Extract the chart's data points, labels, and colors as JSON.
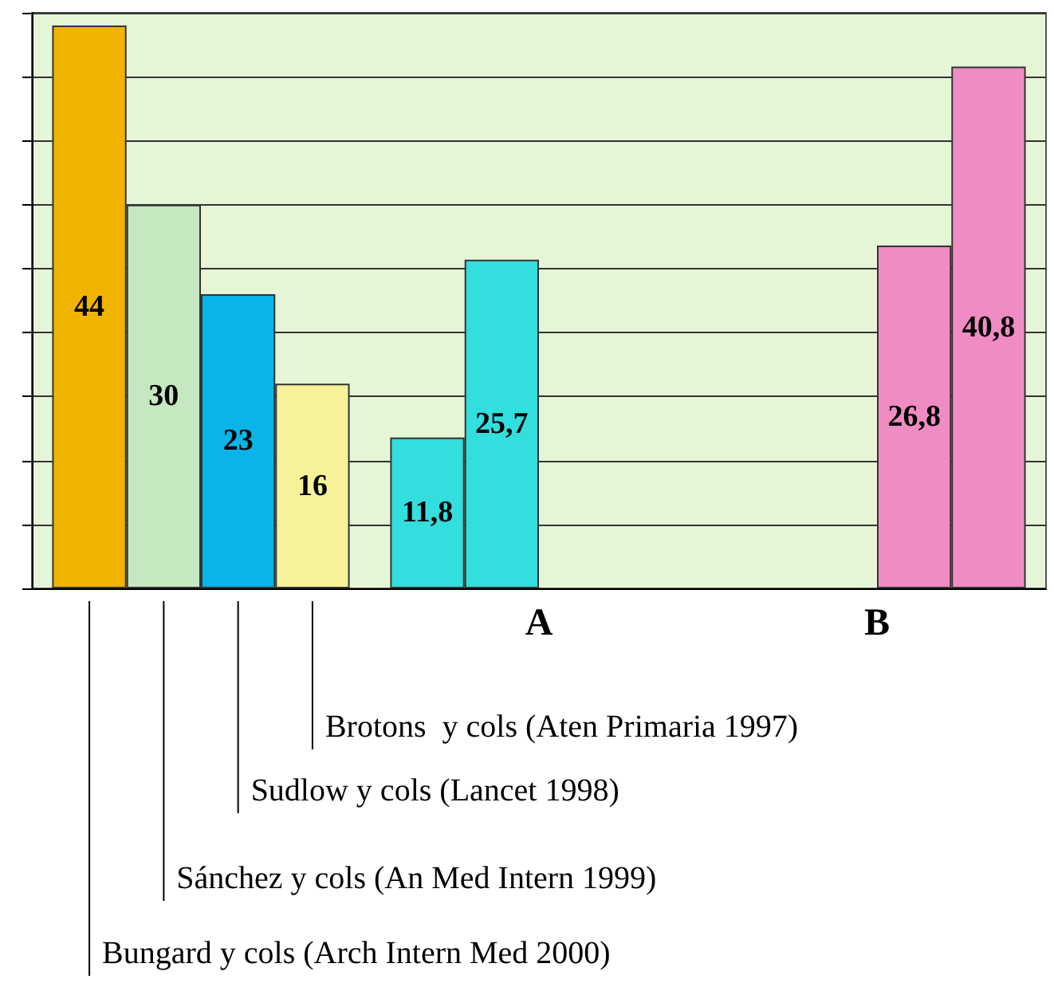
{
  "chart_data": {
    "type": "bar",
    "categories": [
      null,
      "A",
      "B"
    ],
    "series": [
      {
        "values": [
          44,
          11.8,
          null
        ],
        "colors": [
          "#f0b400",
          "#33dede",
          null
        ],
        "value_labels": [
          "44",
          "11,8",
          null
        ]
      },
      {
        "values": [
          30,
          25.7,
          null
        ],
        "colors": [
          "#c6e8c0",
          "#33dede",
          null
        ],
        "value_labels": [
          "30",
          "25,7",
          null
        ]
      },
      {
        "values": [
          23,
          null,
          26.8
        ],
        "colors": [
          "#08b4e8",
          null,
          "#f08cc4"
        ],
        "value_labels": [
          "23",
          null,
          "26,8"
        ]
      },
      {
        "values": [
          16,
          null,
          40.8
        ],
        "colors": [
          "#f6f29a",
          null,
          "#f08cc4"
        ],
        "value_labels": [
          "16",
          null,
          "40,8"
        ]
      }
    ],
    "ylim": [
      0,
      45
    ],
    "yticks": [
      {
        "value": 0,
        "label": null
      },
      {
        "value": 5,
        "label": null
      },
      {
        "value": 10,
        "label": null
      },
      {
        "value": 15,
        "label": null
      },
      {
        "value": 20,
        "label": null
      },
      {
        "value": 25,
        "label": null
      },
      {
        "value": 30,
        "label": null
      },
      {
        "value": 35,
        "label": null
      },
      {
        "value": 40,
        "label": null
      },
      {
        "value": 45,
        "label": null
      }
    ],
    "tick_labels": "x",
    "grid": "y",
    "annotations": [
      "Brotons  y cols (Aten Primaria 1997)",
      "Sudlow y cols (Lancet 1998)",
      "Sánchez y cols (An Med Intern 1999)",
      "Bungard y cols (Arch Intern Med 2000)"
    ]
  }
}
